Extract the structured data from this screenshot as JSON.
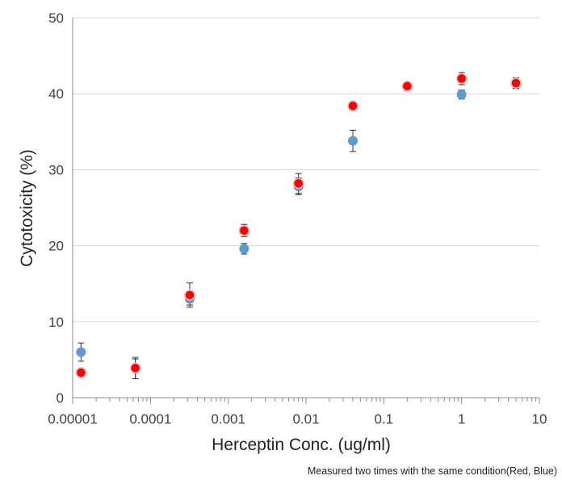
{
  "chart_data": {
    "type": "scatter",
    "title": "",
    "xlabel": "Herceptin Conc. (ug/ml)",
    "ylabel": "Cytotoxicity (%)",
    "xscale": "log",
    "xlim": [
      1e-05,
      10
    ],
    "ylim": [
      0,
      50
    ],
    "x_ticks": [
      1e-05,
      0.0001,
      0.001,
      0.01,
      0.1,
      1,
      10
    ],
    "x_tick_labels": [
      "0.00001",
      "0.0001",
      "0.001",
      "0.01",
      "0.1",
      "1",
      "10"
    ],
    "y_ticks": [
      0,
      10,
      20,
      30,
      40,
      50
    ],
    "y_tick_labels": [
      "0",
      "10",
      "20",
      "30",
      "40",
      "50"
    ],
    "grid": "horizontal",
    "legend": "none",
    "annotation": "Measured two times with the same condition(Red, Blue)",
    "series": [
      {
        "color": "#5B9BD5",
        "x": [
          1.28e-05,
          6.4e-05,
          0.00032,
          0.0016,
          0.008,
          0.04,
          0.2,
          1,
          5
        ],
        "y": [
          6.0,
          3.8,
          13.0,
          19.6,
          27.8,
          33.8,
          40.9,
          39.9,
          41.3
        ],
        "error": [
          1.2,
          1.3,
          0.8,
          0.7,
          1.1,
          1.4,
          0.5,
          0.6,
          0.6
        ]
      },
      {
        "color": "#FF0000",
        "x": [
          1.28e-05,
          6.4e-05,
          0.00032,
          0.0016,
          0.008,
          0.04,
          0.2,
          1,
          5
        ],
        "y": [
          3.3,
          3.9,
          13.5,
          22.0,
          28.2,
          38.4,
          41.0,
          42.0,
          41.4
        ],
        "error": [
          0.2,
          1.4,
          1.6,
          0.8,
          1.3,
          0.3,
          0.4,
          0.8,
          0.7
        ]
      }
    ]
  }
}
